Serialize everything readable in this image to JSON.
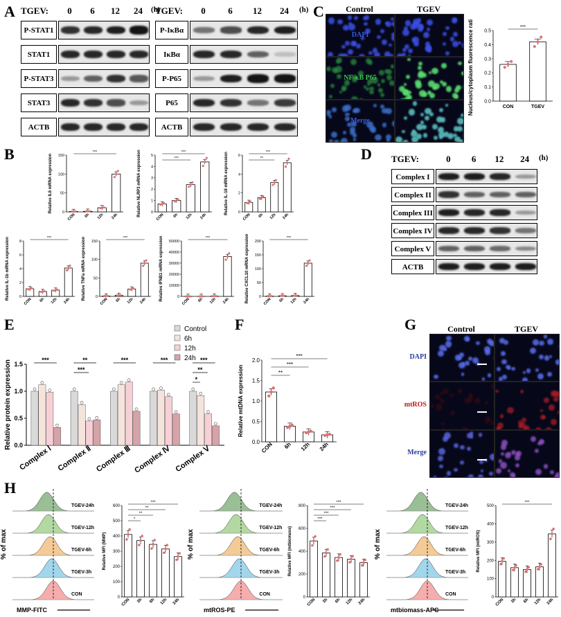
{
  "panels": [
    "A",
    "B",
    "C",
    "D",
    "E",
    "F",
    "G",
    "H"
  ],
  "panel_a": {
    "left": {
      "header": "TGEV:",
      "times": [
        "0",
        "6",
        "12",
        "24"
      ],
      "unit": "(h)",
      "rows": [
        {
          "label": "P-STAT1",
          "bands": [
            0.85,
            0.9,
            0.95,
            1.0
          ]
        },
        {
          "label": "STAT1",
          "bands": [
            0.9,
            0.9,
            0.9,
            0.9
          ]
        },
        {
          "label": "P-STAT3",
          "bands": [
            0.3,
            0.6,
            0.85,
            0.65
          ]
        },
        {
          "label": "STAT3",
          "bands": [
            0.9,
            0.85,
            0.7,
            0.3
          ]
        },
        {
          "label": "ACTB",
          "bands": [
            0.9,
            0.9,
            0.9,
            0.9
          ]
        }
      ]
    },
    "right": {
      "header": "TGEV:",
      "times": [
        "0",
        "6",
        "12",
        "24"
      ],
      "unit": "(h)",
      "rows": [
        {
          "label": "P-IκBα",
          "bands": [
            0.5,
            0.7,
            0.9,
            0.95
          ]
        },
        {
          "label": "IκBα",
          "bands": [
            0.9,
            0.9,
            0.6,
            0.1
          ]
        },
        {
          "label": "P-P65",
          "bands": [
            0.3,
            0.95,
            1.0,
            1.0
          ]
        },
        {
          "label": "P65",
          "bands": [
            0.9,
            0.85,
            0.5,
            0.8
          ]
        },
        {
          "label": "ACTB",
          "bands": [
            0.9,
            0.9,
            0.9,
            0.9
          ]
        }
      ]
    }
  },
  "panel_c": {
    "cols": [
      "Control",
      "TGEV"
    ],
    "rows": [
      "DAPI",
      "NF-κB P65",
      "Merge"
    ]
  },
  "panel_d": {
    "header": "TGEV:",
    "times": [
      "0",
      "6",
      "12",
      "24"
    ],
    "unit": "(h)",
    "rows": [
      {
        "label": "Complex I",
        "bands": [
          0.95,
          0.95,
          0.9,
          0.3
        ]
      },
      {
        "label": "Complex II",
        "bands": [
          0.85,
          0.6,
          0.6,
          0.6
        ]
      },
      {
        "label": "Complex III",
        "bands": [
          0.95,
          0.9,
          0.9,
          0.3
        ]
      },
      {
        "label": "Complex IV",
        "bands": [
          0.9,
          0.9,
          0.85,
          0.5
        ]
      },
      {
        "label": "Complex V",
        "bands": [
          0.6,
          0.6,
          0.55,
          0.4
        ]
      },
      {
        "label": "ACTB",
        "bands": [
          0.95,
          0.95,
          0.95,
          0.95
        ]
      }
    ]
  },
  "panel_g": {
    "cols": [
      "Control",
      "TGEV"
    ],
    "rows": [
      "DAPI",
      "mtROS",
      "Merge"
    ]
  },
  "panel_h": {
    "flow": [
      {
        "xlabel": "MMP-FITC",
        "ylabel": "% of max",
        "tracks": [
          "TGEV-24h",
          "TGEV-12h",
          "TGEV-6h",
          "TGEV-3h",
          "CON"
        ]
      },
      {
        "xlabel": "mtROS-PE",
        "ylabel": "% of max",
        "tracks": [
          "TGEV-24h",
          "TGEV-12h",
          "TGEV-6h",
          "TGEV-3h",
          "CON"
        ]
      },
      {
        "xlabel": "mtbiomass-APC",
        "ylabel": "% of max",
        "tracks": [
          "TGEV-24h",
          "TGEV-12h",
          "TGEV-6h",
          "TGEV-3h",
          "CON"
        ]
      }
    ]
  },
  "chart_data": [
    {
      "id": "C",
      "type": "bar",
      "categories": [
        "CON",
        "TGEV"
      ],
      "values": [
        0.26,
        0.42
      ],
      "ylabel": "Nucleus/cytoplasm fluorescence ratio",
      "ylim": [
        0,
        0.5
      ],
      "yticks": [
        "0.0",
        "0.1",
        "0.2",
        "0.3",
        "0.4",
        "0.5"
      ],
      "sig": [
        "***"
      ]
    },
    {
      "id": "B-IL6",
      "type": "bar",
      "categories": [
        "CON",
        "6h",
        "12h",
        "24h"
      ],
      "values": [
        1,
        1.5,
        11,
        100
      ],
      "ylabel": "Relative IL6 mRNA expression",
      "ylim": [
        0,
        150
      ],
      "yticks": [
        "0",
        "50",
        "100",
        "150"
      ],
      "sig": [
        "***"
      ]
    },
    {
      "id": "B-NLRP3",
      "type": "bar",
      "categories": [
        "CON",
        "6h",
        "12h",
        "24h"
      ],
      "values": [
        0.7,
        1.0,
        2.4,
        4.4
      ],
      "ylabel": "Relative NLRP3 mRNA expression",
      "ylim": [
        0,
        5
      ],
      "yticks": [
        "0",
        "1",
        "2",
        "3",
        "4",
        "5"
      ],
      "sig": [
        "***",
        "***"
      ]
    },
    {
      "id": "B-IL18",
      "type": "bar",
      "categories": [
        "CON",
        "6h",
        "12h",
        "24h"
      ],
      "values": [
        1,
        1.5,
        3.1,
        5.2
      ],
      "ylabel": "Relative IL-18 mRNA expression",
      "ylim": [
        0,
        6
      ],
      "yticks": [
        "0",
        "2",
        "4",
        "6"
      ],
      "sig": [
        "***",
        "**"
      ]
    },
    {
      "id": "B-IL1b",
      "type": "bar",
      "categories": [
        "CON",
        "6h",
        "12h",
        "24h"
      ],
      "values": [
        1.1,
        0.7,
        0.9,
        4.1
      ],
      "ylabel": "Relative IL-1b mRNA expression",
      "ylim": [
        0,
        8
      ],
      "yticks": [
        "0",
        "2",
        "4",
        "6",
        "8"
      ],
      "sig": [
        "***"
      ]
    },
    {
      "id": "B-TNFa",
      "type": "bar",
      "categories": [
        "CON",
        "6h",
        "12h",
        "24h"
      ],
      "values": [
        1,
        3,
        20,
        90
      ],
      "ylabel": "Relative TNFa mRNA expression",
      "ylim": [
        0,
        150
      ],
      "yticks": [
        "0",
        "50",
        "100",
        "150"
      ],
      "sig": [
        "***"
      ]
    },
    {
      "id": "B-IFNB1",
      "type": "bar",
      "categories": [
        "CON",
        "6h",
        "12h",
        "24h"
      ],
      "values": [
        1,
        5,
        200,
        36000
      ],
      "ylabel": "Relative IFNB1 mRNA expression",
      "ylim": [
        0,
        50000
      ],
      "yticks": [
        "0",
        "10000",
        "20000",
        "30000",
        "40000",
        "50000"
      ],
      "sig": [
        "***"
      ]
    },
    {
      "id": "B-CXCL10",
      "type": "bar",
      "categories": [
        "CON",
        "6h",
        "12h",
        "24h"
      ],
      "values": [
        1,
        2,
        3,
        120
      ],
      "ylabel": "Relative CXCL10 mRNA expression",
      "ylim": [
        0,
        200
      ],
      "yticks": [
        "0",
        "50",
        "100",
        "150",
        "200"
      ],
      "sig": [
        "***"
      ]
    },
    {
      "id": "E",
      "type": "bar",
      "categories": [
        "Complex Ⅰ",
        "Complex Ⅱ",
        "Complex Ⅲ",
        "Complex Ⅳ",
        "Complex Ⅴ"
      ],
      "series": [
        {
          "name": "Control",
          "values": [
            1.0,
            1.0,
            1.0,
            1.0,
            1.0
          ]
        },
        {
          "name": "6h",
          "values": [
            1.12,
            0.75,
            1.12,
            1.02,
            0.92
          ]
        },
        {
          "name": "12h",
          "values": [
            0.98,
            0.45,
            1.17,
            0.9,
            0.58
          ]
        },
        {
          "name": "24h",
          "values": [
            0.33,
            0.47,
            0.63,
            0.58,
            0.36
          ]
        }
      ],
      "ylabel": "Relative protein expression",
      "ylim": [
        0,
        1.5
      ],
      "yticks": [
        "0.0",
        "0.5",
        "1.0",
        "1.5"
      ],
      "sig": [
        "***",
        "**",
        "***",
        "***",
        "***",
        "***",
        "**",
        "*"
      ]
    },
    {
      "id": "F",
      "type": "bar",
      "categories": [
        "CON",
        "6h",
        "12h",
        "24h"
      ],
      "values": [
        1.22,
        0.38,
        0.24,
        0.17
      ],
      "ylabel": "Relative mtDNA expression",
      "ylim": [
        0,
        2.0
      ],
      "yticks": [
        "0.0",
        "0.5",
        "1.0",
        "1.5",
        "2.0"
      ],
      "sig": [
        "***",
        "***",
        "**"
      ]
    },
    {
      "id": "H-MMP",
      "type": "bar",
      "categories": [
        "CON",
        "3h",
        "6h",
        "12h",
        "24h"
      ],
      "values": [
        410,
        370,
        345,
        315,
        265
      ],
      "ylabel": "Relative MFI (MMP)",
      "ylim": [
        0,
        600
      ],
      "yticks": [
        "0",
        "100",
        "200",
        "300",
        "400",
        "500",
        "600"
      ],
      "sig": [
        "***",
        "**",
        "**",
        "*"
      ]
    },
    {
      "id": "H-mtbiomass",
      "type": "bar",
      "categories": [
        "CON",
        "3h",
        "6h",
        "12h",
        "24h"
      ],
      "values": [
        490,
        385,
        345,
        330,
        300
      ],
      "ylabel": "Relative MFI (mtbiomass)",
      "ylim": [
        0,
        800
      ],
      "yticks": [
        "0",
        "200",
        "400",
        "600",
        "800"
      ],
      "sig": [
        "***",
        "***",
        "***",
        "***"
      ]
    },
    {
      "id": "H-mtROS",
      "type": "bar",
      "categories": [
        "CON",
        "3h",
        "6h",
        "12h",
        "24h"
      ],
      "values": [
        195,
        160,
        150,
        165,
        345
      ],
      "ylabel": "Relative MFI (mtROS)",
      "ylim": [
        0,
        500
      ],
      "yticks": [
        "0",
        "100",
        "200",
        "300",
        "400",
        "500"
      ],
      "sig": [
        "***"
      ]
    }
  ],
  "e_legend": [
    "Control",
    "6h",
    "12h",
    "24h"
  ]
}
